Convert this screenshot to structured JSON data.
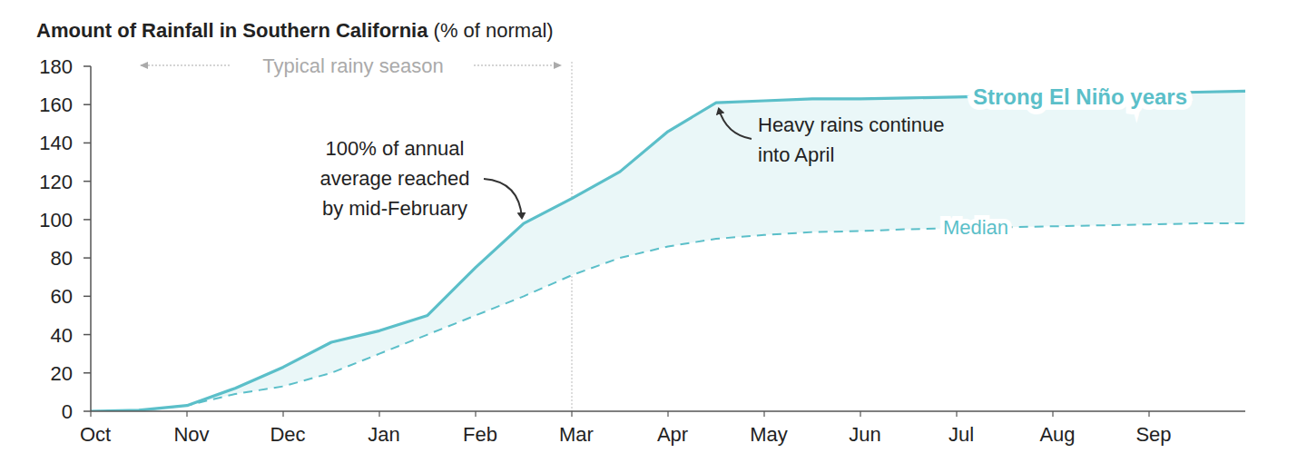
{
  "chart_data": {
    "type": "line",
    "title": "Amount of Rainfall in Southern California",
    "ylabel": "(% of normal)",
    "categories": [
      "Oct",
      null,
      "Nov",
      null,
      "Dec",
      null,
      "Jan",
      null,
      "Feb",
      null,
      "Mar",
      null,
      "Apr",
      null,
      "May",
      null,
      "Jun",
      null,
      "Jul",
      null,
      "Aug",
      null,
      "Sep",
      null,
      null
    ],
    "series": [
      {
        "name": "Strong El Niño years",
        "color": "#5bbfc9",
        "line_style": "solid",
        "values": [
          0,
          0.5,
          3,
          12,
          23,
          36,
          42,
          50,
          75,
          98,
          111,
          125,
          146,
          161,
          162,
          163,
          163,
          163.5,
          164,
          164.5,
          165,
          165.5,
          166,
          166.5,
          167
        ]
      },
      {
        "name": "Median",
        "color": "#5bbfc9",
        "line_style": "dashed",
        "values": [
          0,
          0.5,
          3,
          9,
          13,
          20,
          30,
          40,
          50,
          60,
          71,
          80,
          86,
          90,
          92,
          93.5,
          94,
          95,
          95.5,
          96,
          96.5,
          97,
          97.5,
          98,
          98
        ]
      }
    ],
    "ylim": [
      0,
      180
    ],
    "yticks": [
      0,
      20,
      40,
      60,
      80,
      100,
      120,
      140,
      160,
      180
    ],
    "grid": false,
    "annotations": [
      {
        "text": "Typical rainy season"
      },
      {
        "lines": [
          "100% of annual",
          "average reached",
          "by mid-February"
        ]
      },
      {
        "lines": [
          "Heavy rains continue",
          "into April"
        ]
      }
    ]
  }
}
